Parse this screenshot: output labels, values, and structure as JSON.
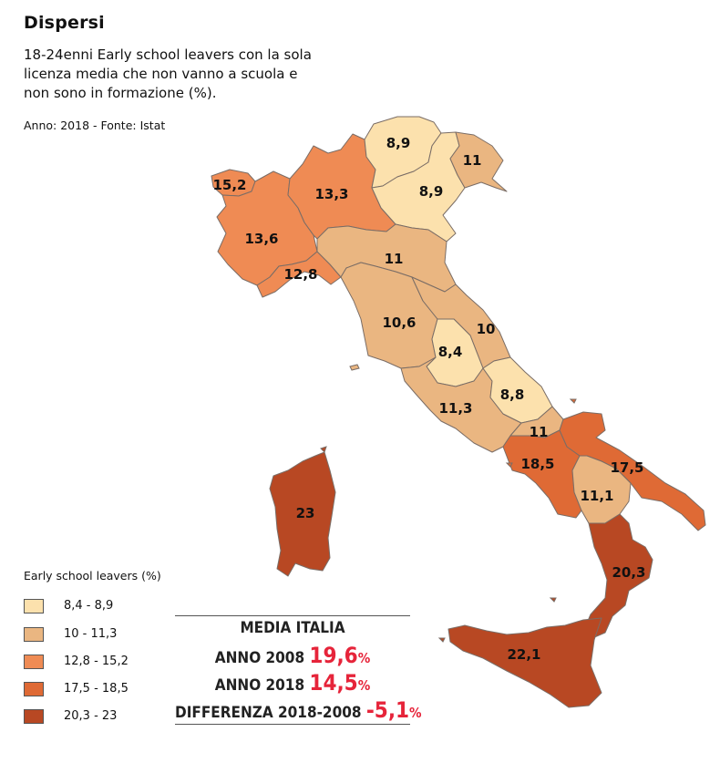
{
  "title": "Dispersi",
  "subtitle": "18-24enni Early school leavers con la sola licenza media che non vanno a scuola e non sono in formazione (%).",
  "source": "Anno: 2018 - Fonte: Istat",
  "colors": {
    "class1": "#fce1ad",
    "class2": "#eab681",
    "class3": "#ef8b54",
    "class4": "#df6a35",
    "class5": "#b84823",
    "accent": "#e6243a"
  },
  "regions": [
    {
      "name": "Valle d'Aosta",
      "value": "15,2",
      "class": 3
    },
    {
      "name": "Piemonte",
      "value": "13,6",
      "class": 3
    },
    {
      "name": "Liguria",
      "value": "12,8",
      "class": 3
    },
    {
      "name": "Lombardia",
      "value": "13,3",
      "class": 3
    },
    {
      "name": "Trentino",
      "value": "8,9",
      "class": 1
    },
    {
      "name": "Friuli Venezia Giulia",
      "value": "8,9",
      "class": 1
    },
    {
      "name": "Veneto",
      "value": "11",
      "class": 2
    },
    {
      "name": "Emilia-Romagna",
      "value": "11",
      "class": 2
    },
    {
      "name": "Toscana",
      "value": "10,6",
      "class": 2
    },
    {
      "name": "Marche",
      "value": "10",
      "class": 2
    },
    {
      "name": "Umbria",
      "value": "8,4",
      "class": 1
    },
    {
      "name": "Lazio",
      "value": "11,3",
      "class": 2
    },
    {
      "name": "Abruzzo",
      "value": "8,8",
      "class": 1
    },
    {
      "name": "Molise",
      "value": "11",
      "class": 2
    },
    {
      "name": "Campania",
      "value": "18,5",
      "class": 4
    },
    {
      "name": "Puglia",
      "value": "17,5",
      "class": 4
    },
    {
      "name": "Basilicata",
      "value": "11,1",
      "class": 2
    },
    {
      "name": "Calabria",
      "value": "20,3",
      "class": 5
    },
    {
      "name": "Sicilia",
      "value": "22,1",
      "class": 5
    },
    {
      "name": "Sardegna",
      "value": "23",
      "class": 5
    }
  ],
  "legend": {
    "title": "Early school leavers (%)",
    "items": [
      {
        "label": "8,4 - 8,9",
        "class": 1
      },
      {
        "label": "10 - 11,3",
        "class": 2
      },
      {
        "label": "12,8 - 15,2",
        "class": 3
      },
      {
        "label": "17,5 - 18,5",
        "class": 4
      },
      {
        "label": "20,3 - 23",
        "class": 5
      }
    ]
  },
  "media": {
    "heading": "MEDIA ITALIA",
    "row2008_label": "ANNO 2008",
    "row2008_value": "19,6",
    "row2018_label": "ANNO 2018",
    "row2018_value": "14,5",
    "diff_label": "DIFFERENZA 2018-2008",
    "diff_value": "-5,1",
    "percent_sign": "%"
  }
}
